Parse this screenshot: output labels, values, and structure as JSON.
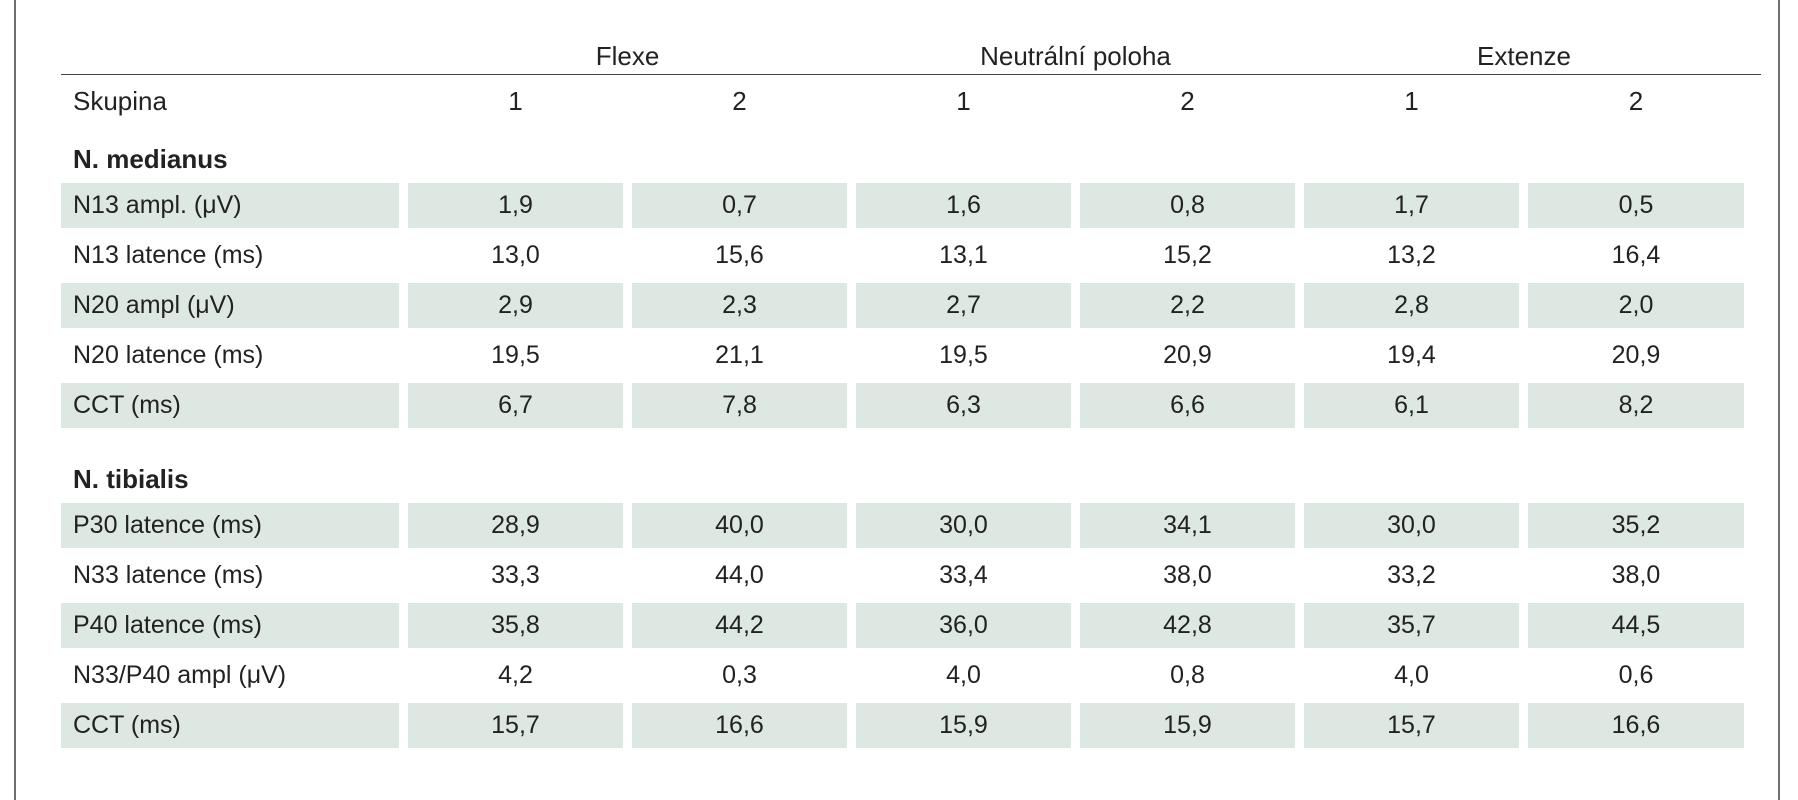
{
  "header": {
    "groups": [
      "Flexe",
      "Neutrální poloha",
      "Extenze"
    ],
    "row_label": "Skupina",
    "subcolumns": [
      "1",
      "2",
      "1",
      "2",
      "1",
      "2"
    ]
  },
  "sections": [
    {
      "title": "N. medianus",
      "rows": [
        {
          "label": "N13 ampl. (μV)",
          "values": [
            "1,9",
            "0,7",
            "1,6",
            "0,8",
            "1,7",
            "0,5"
          ],
          "shaded": true
        },
        {
          "label": "N13 latence (ms)",
          "values": [
            "13,0",
            "15,6",
            "13,1",
            "15,2",
            "13,2",
            "16,4"
          ],
          "shaded": false
        },
        {
          "label": "N20 ampl (μV)",
          "values": [
            "2,9",
            "2,3",
            "2,7",
            "2,2",
            "2,8",
            "2,0"
          ],
          "shaded": true
        },
        {
          "label": "N20 latence (ms)",
          "values": [
            "19,5",
            "21,1",
            "19,5",
            "20,9",
            "19,4",
            "20,9"
          ],
          "shaded": false
        },
        {
          "label": "CCT (ms)",
          "values": [
            "6,7",
            "7,8",
            "6,3",
            "6,6",
            "6,1",
            "8,2"
          ],
          "shaded": true
        }
      ]
    },
    {
      "title": "N. tibialis",
      "rows": [
        {
          "label": "P30 latence (ms)",
          "values": [
            "28,9",
            "40,0",
            "30,0",
            "34,1",
            "30,0",
            "35,2"
          ],
          "shaded": true
        },
        {
          "label": "N33 latence (ms)",
          "values": [
            "33,3",
            "44,0",
            "33,4",
            "38,0",
            "33,2",
            "38,0"
          ],
          "shaded": false
        },
        {
          "label": "P40 latence (ms)",
          "values": [
            "35,8",
            "44,2",
            "36,0",
            "42,8",
            "35,7",
            "44,5"
          ],
          "shaded": true
        },
        {
          "label": "N33/P40 ampl (μV)",
          "values": [
            "4,2",
            "0,3",
            "4,0",
            "0,8",
            "4,0",
            "0,6"
          ],
          "shaded": false
        },
        {
          "label": "CCT (ms)",
          "values": [
            "15,7",
            "16,6",
            "15,9",
            "15,9",
            "15,7",
            "16,6"
          ],
          "shaded": true
        }
      ]
    }
  ]
}
